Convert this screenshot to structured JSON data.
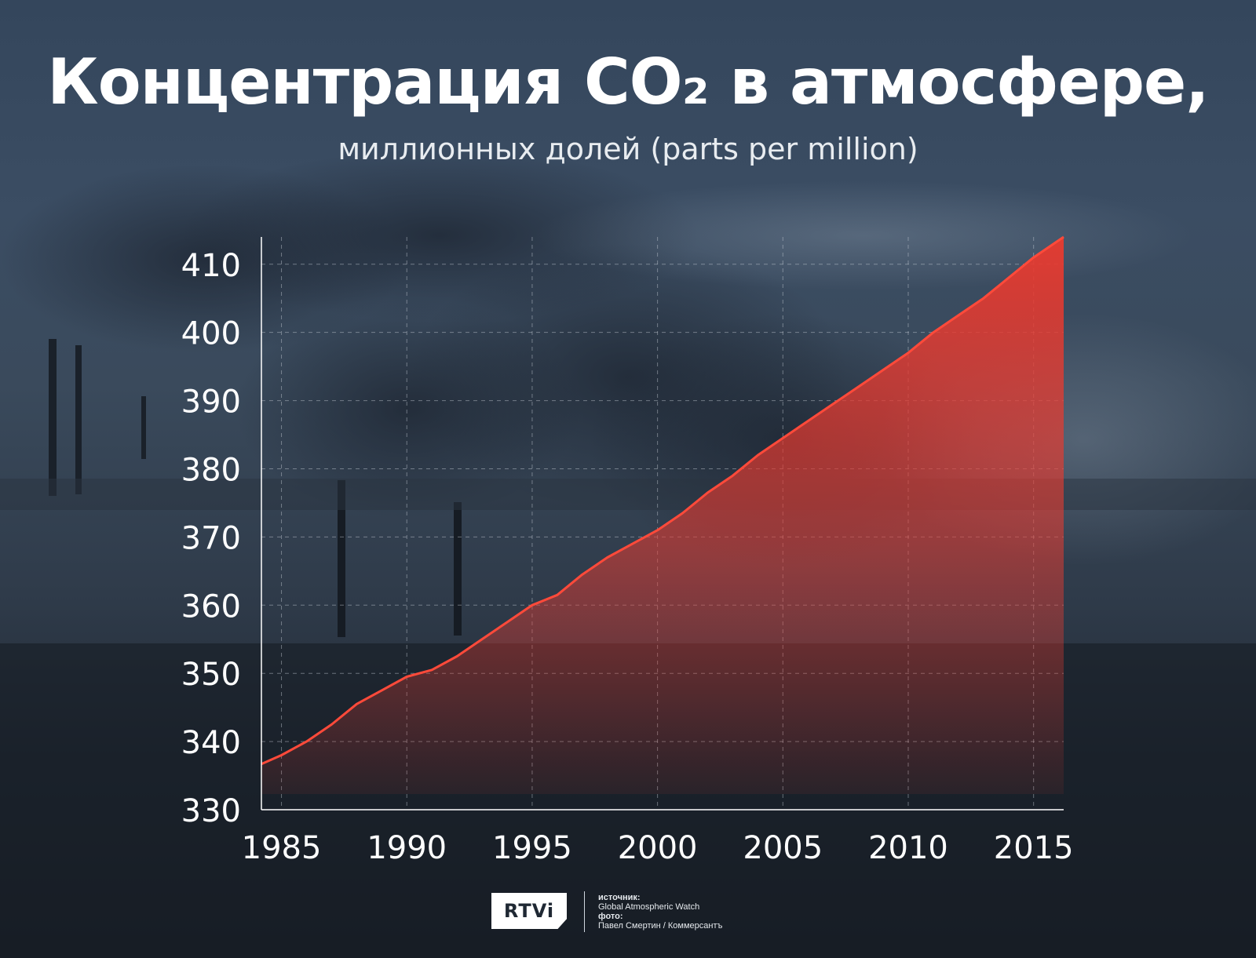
{
  "colors": {
    "accent": "#e83a2f",
    "grid": "#c9d1da",
    "axis": "#ffffff",
    "text": "#ffffff"
  },
  "chart_data": {
    "type": "area",
    "title": "Концентрация CO₂ в атмосфере,",
    "subtitle": "миллионных долей (parts per million)",
    "xlabel": "",
    "ylabel": "",
    "xlim": [
      1984.2,
      2016.2
    ],
    "ylim": [
      330,
      414
    ],
    "x_ticks": [
      1985,
      1990,
      1995,
      2000,
      2005,
      2010,
      2015
    ],
    "y_ticks": [
      330,
      340,
      350,
      360,
      370,
      380,
      390,
      400,
      410
    ],
    "grid": true,
    "series": [
      {
        "x": [
          1984.2,
          1985,
          1986,
          1987,
          1988,
          1989,
          1990,
          1991,
          1992,
          1993,
          1994,
          1995,
          1996,
          1997,
          1998,
          1999,
          2000,
          2001,
          2002,
          2003,
          2004,
          2005,
          2006,
          2007,
          2008,
          2009,
          2010,
          2011,
          2012,
          2013,
          2014,
          2015,
          2016.2
        ],
        "values": [
          336.7,
          338.0,
          340.0,
          342.5,
          345.5,
          347.5,
          349.5,
          350.5,
          352.5,
          355.0,
          357.5,
          360.0,
          361.5,
          364.5,
          367.0,
          369.0,
          371.0,
          373.5,
          376.5,
          379.0,
          382.0,
          384.5,
          387.0,
          389.5,
          392.0,
          394.5,
          397.0,
          400.0,
          402.5,
          405.0,
          408.0,
          411.0,
          414.0
        ]
      }
    ]
  },
  "footer": {
    "logo": "RTVi",
    "source_label": "источник:",
    "source": "Global Atmospheric Watch",
    "photo_label": "фото:",
    "photo": "Павел Смертин / Коммерсантъ"
  }
}
